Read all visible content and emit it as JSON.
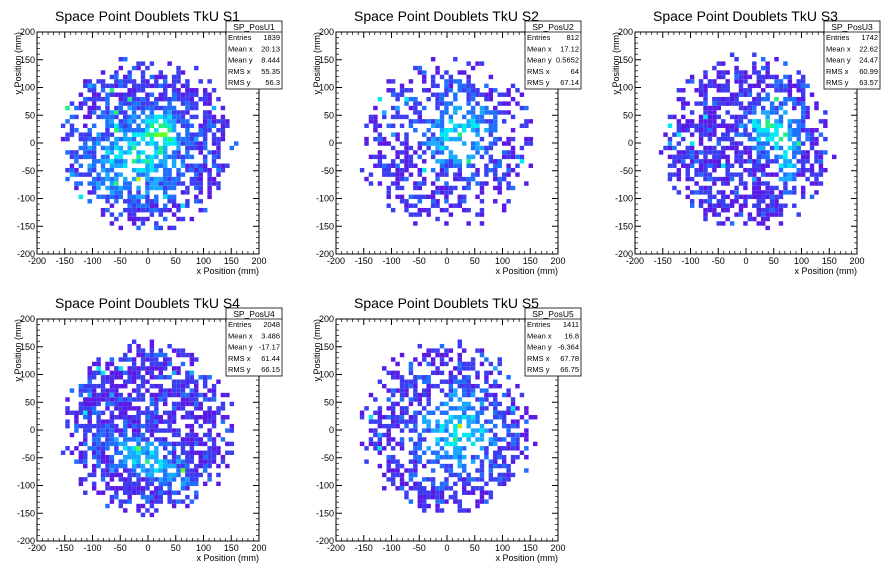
{
  "chart_data": [
    {
      "type": "heatmap",
      "title": "Space Point Doublets TkU S1",
      "xlabel": "x Position (mm)",
      "ylabel": "y Position (mm)",
      "xlim": [
        -200,
        200
      ],
      "ylim": [
        -200,
        200
      ],
      "x_ticks": [
        "-200",
        "-150",
        "-100",
        "-50",
        "0",
        "50",
        "100",
        "150",
        "200"
      ],
      "y_ticks": [
        "-200",
        "-150",
        "-100",
        "-50",
        "0",
        "50",
        "100",
        "150",
        "200"
      ],
      "stats": {
        "name": "SP_PosU1",
        "rows": [
          {
            "label": "Entries",
            "value": "1839"
          },
          {
            "label": "Mean x",
            "value": "20.13"
          },
          {
            "label": "Mean y",
            "value": "8.444"
          },
          {
            "label": "RMS x",
            "value": "55.35"
          },
          {
            "label": "RMS y",
            "value": "56.3"
          }
        ]
      },
      "pattern": {
        "hot": [
          [
            -20,
            -20,
            60,
            55,
            45
          ],
          [
            30,
            20,
            18,
            20,
            0
          ]
        ],
        "density": 0.62
      }
    },
    {
      "type": "heatmap",
      "title": "Space Point Doublets TkU S2",
      "xlabel": "x Position (mm)",
      "ylabel": "y Position (mm)",
      "xlim": [
        -200,
        200
      ],
      "ylim": [
        -200,
        200
      ],
      "x_ticks": [
        "-200",
        "-150",
        "-100",
        "-50",
        "0",
        "50",
        "100",
        "150",
        "200"
      ],
      "y_ticks": [
        "-200",
        "-150",
        "-100",
        "-50",
        "0",
        "50",
        "100",
        "150",
        "200"
      ],
      "stats": {
        "name": "SP_PosU2",
        "rows": [
          {
            "label": "Entries",
            "value": "812"
          },
          {
            "label": "Mean x",
            "value": "17.12"
          },
          {
            "label": "Mean y",
            "value": "0.5652"
          },
          {
            "label": "RMS x",
            "value": "64"
          },
          {
            "label": "RMS y",
            "value": "67.14"
          }
        ]
      },
      "pattern": {
        "hot": [
          [
            20,
            20,
            40,
            45,
            0
          ]
        ],
        "density": 0.45
      }
    },
    {
      "type": "heatmap",
      "title": "Space Point Doublets TkU S3",
      "xlabel": "x Position (mm)",
      "ylabel": "y Position (mm)",
      "xlim": [
        -200,
        200
      ],
      "ylim": [
        -200,
        200
      ],
      "x_ticks": [
        "-200",
        "-150",
        "-100",
        "-50",
        "0",
        "50",
        "100",
        "150",
        "200"
      ],
      "y_ticks": [
        "-200",
        "-150",
        "-100",
        "-50",
        "0",
        "50",
        "100",
        "150",
        "200"
      ],
      "stats": {
        "name": "SP_PosU3",
        "rows": [
          {
            "label": "Entries",
            "value": "1742"
          },
          {
            "label": "Mean x",
            "value": "22.62"
          },
          {
            "label": "Mean y",
            "value": "24.47"
          },
          {
            "label": "RMS x",
            "value": "60.99"
          },
          {
            "label": "RMS y",
            "value": "63.57"
          }
        ]
      },
      "pattern": {
        "hot": [
          [
            40,
            30,
            30,
            30,
            0
          ],
          [
            75,
            -25,
            12,
            40,
            0
          ]
        ],
        "density": 0.6
      }
    },
    {
      "type": "heatmap",
      "title": "Space Point Doublets TkU S4",
      "xlabel": "x Position (mm)",
      "ylabel": "y Position (mm)",
      "xlim": [
        -200,
        200
      ],
      "ylim": [
        -200,
        200
      ],
      "x_ticks": [
        "-200",
        "-150",
        "-100",
        "-50",
        "0",
        "50",
        "100",
        "150",
        "200"
      ],
      "y_ticks": [
        "-200",
        "-150",
        "-100",
        "-50",
        "0",
        "50",
        "100",
        "150",
        "200"
      ],
      "stats": {
        "name": "SP_PosU4",
        "rows": [
          {
            "label": "Entries",
            "value": "2048"
          },
          {
            "label": "Mean x",
            "value": "3.486"
          },
          {
            "label": "Mean y",
            "value": "-17.17"
          },
          {
            "label": "RMS x",
            "value": "61.44"
          },
          {
            "label": "RMS y",
            "value": "66.15"
          }
        ]
      },
      "pattern": {
        "hot": [
          [
            0,
            -55,
            55,
            20,
            -30
          ]
        ],
        "density": 0.68
      }
    },
    {
      "type": "heatmap",
      "title": "Space Point Doublets TkU S5",
      "xlabel": "x Position (mm)",
      "ylabel": "y Position (mm)",
      "xlim": [
        -200,
        200
      ],
      "ylim": [
        -200,
        200
      ],
      "x_ticks": [
        "-200",
        "-150",
        "-100",
        "-50",
        "0",
        "50",
        "100",
        "150",
        "200"
      ],
      "y_ticks": [
        "-200",
        "-150",
        "-100",
        "-50",
        "0",
        "50",
        "100",
        "150",
        "200"
      ],
      "stats": {
        "name": "SP_PosU5",
        "rows": [
          {
            "label": "Entries",
            "value": "1411"
          },
          {
            "label": "Mean x",
            "value": "16.8"
          },
          {
            "label": "Mean y",
            "value": "-6.364"
          },
          {
            "label": "RMS x",
            "value": "67.78"
          },
          {
            "label": "RMS y",
            "value": "66.75"
          }
        ]
      },
      "pattern": {
        "hot": [
          [
            20,
            0,
            45,
            50,
            0
          ]
        ],
        "density": 0.52
      }
    }
  ],
  "palette": [
    "#5a1ae6",
    "#3c3cf0",
    "#1f6fff",
    "#18a8ff",
    "#00e8f0",
    "#20f080",
    "#60ff20",
    "#c8f000",
    "#ffb000",
    "#ff3000"
  ]
}
